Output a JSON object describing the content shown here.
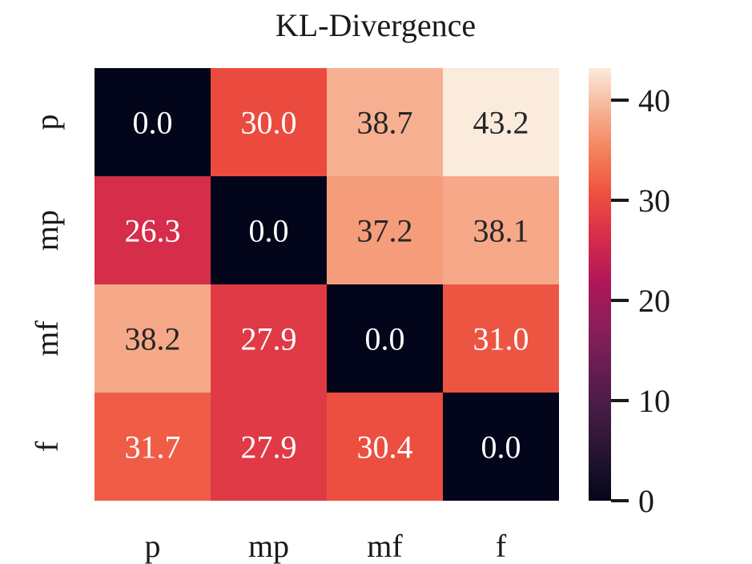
{
  "chart_data": {
    "type": "heatmap",
    "title": "KL-Divergence",
    "x_labels": [
      "p",
      "mp",
      "mf",
      "f"
    ],
    "y_labels": [
      "p",
      "mp",
      "mf",
      "f"
    ],
    "values": [
      [
        0.0,
        30.0,
        38.7,
        43.2
      ],
      [
        26.3,
        0.0,
        37.2,
        38.1
      ],
      [
        38.2,
        27.9,
        0.0,
        31.0
      ],
      [
        31.7,
        27.9,
        30.4,
        0.0
      ]
    ],
    "cell_labels": [
      [
        "0.0",
        "30.0",
        "38.7",
        "43.2"
      ],
      [
        "26.3",
        "0.0",
        "37.2",
        "38.1"
      ],
      [
        "38.2",
        "27.9",
        "0.0",
        "31.0"
      ],
      [
        "31.7",
        "27.9",
        "30.4",
        "0.0"
      ]
    ],
    "colorbar": {
      "min": 0,
      "max": 43.2,
      "ticks": [
        0,
        10,
        20,
        30,
        40
      ],
      "tick_labels": [
        "0",
        "10",
        "20",
        "30",
        "40"
      ]
    },
    "colormap": "rocket",
    "xlabel": "",
    "ylabel": ""
  }
}
